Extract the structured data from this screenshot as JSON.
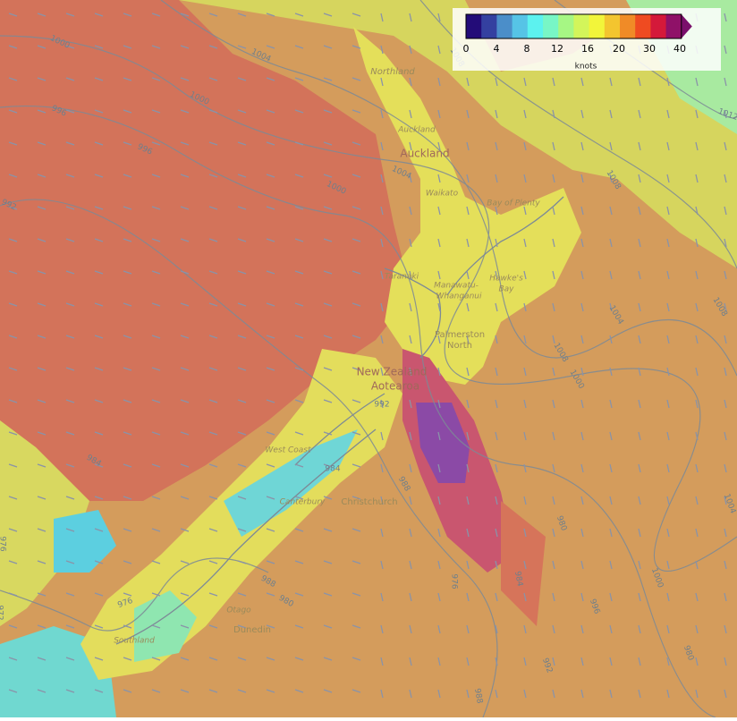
{
  "legend": {
    "ticks": [
      0,
      4,
      8,
      12,
      16,
      20,
      30,
      40
    ],
    "unit": "knots",
    "colors": [
      "#230c78",
      "#3440a0",
      "#4b8ec9",
      "#56c4e6",
      "#5cf2ef",
      "#78f6c6",
      "#a6f784",
      "#d3f55a",
      "#f2f53a",
      "#f3c52f",
      "#f08b27",
      "#ef4b21",
      "#d4193a",
      "#8f1168",
      "#7a0f6b"
    ]
  },
  "places": [
    "Northland",
    "Auckland",
    "Auckland",
    "Waikato",
    "Bay of Plenty",
    "Taranaki",
    "Manawatu-",
    "Whanganui",
    "Hawke's",
    "Bay",
    "Palmerston",
    "North",
    "New Zealand",
    "Aotearoa",
    "West Coast",
    "Canterbury",
    "Christchurch",
    "Otago",
    "Dunedin",
    "Southland"
  ],
  "isobars": [
    1000,
    1004,
    1000,
    996,
    996,
    992,
    1000,
    1004,
    1008,
    1008,
    1012,
    1008,
    1004,
    1008,
    1000,
    992,
    988,
    984,
    988,
    980,
    984,
    984,
    976,
    972,
    980,
    976,
    1004,
    1000,
    996,
    992,
    988,
    980,
    976
  ]
}
